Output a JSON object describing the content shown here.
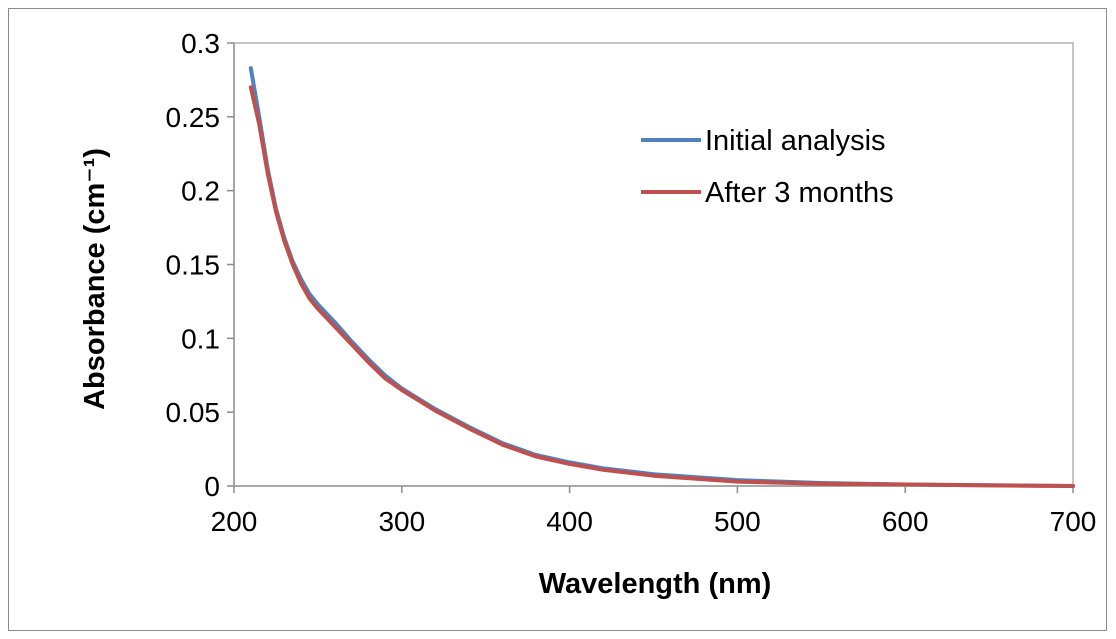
{
  "chart_data": {
    "type": "line",
    "title": "",
    "xlabel": "Wavelength (nm)",
    "ylabel": "Absorbance (cm⁻¹)",
    "xlim": [
      200,
      700
    ],
    "ylim": [
      0,
      0.3
    ],
    "xticks": [
      200,
      300,
      400,
      500,
      600,
      700
    ],
    "yticks": [
      0,
      0.05,
      0.1,
      0.15,
      0.2,
      0.25,
      0.3
    ],
    "xtick_labels": [
      "200",
      "300",
      "400",
      "500",
      "600",
      "700"
    ],
    "ytick_labels": [
      "0",
      "0.05",
      "0.1",
      "0.15",
      "0.2",
      "0.25",
      "0.3"
    ],
    "grid": false,
    "legend_position": "top-right",
    "series": [
      {
        "name": "Initial analysis",
        "color": "#4f81bd",
        "x": [
          210,
          215,
          220,
          225,
          230,
          235,
          240,
          245,
          250,
          260,
          270,
          280,
          290,
          300,
          320,
          340,
          360,
          380,
          400,
          420,
          450,
          500,
          550,
          600,
          650,
          700
        ],
        "y": [
          0.283,
          0.25,
          0.215,
          0.188,
          0.168,
          0.152,
          0.14,
          0.13,
          0.123,
          0.111,
          0.098,
          0.086,
          0.075,
          0.066,
          0.052,
          0.04,
          0.029,
          0.021,
          0.016,
          0.012,
          0.008,
          0.004,
          0.002,
          0.001,
          0.0005,
          0
        ]
      },
      {
        "name": "After 3 months",
        "color": "#c0504d",
        "x": [
          210,
          215,
          220,
          225,
          230,
          235,
          240,
          245,
          250,
          260,
          270,
          280,
          290,
          300,
          320,
          340,
          360,
          380,
          400,
          420,
          450,
          500,
          550,
          600,
          650,
          700
        ],
        "y": [
          0.27,
          0.245,
          0.212,
          0.186,
          0.166,
          0.15,
          0.137,
          0.127,
          0.12,
          0.108,
          0.096,
          0.084,
          0.073,
          0.065,
          0.051,
          0.039,
          0.028,
          0.02,
          0.015,
          0.011,
          0.007,
          0.003,
          0.0015,
          0.001,
          0.0004,
          0
        ]
      }
    ]
  }
}
